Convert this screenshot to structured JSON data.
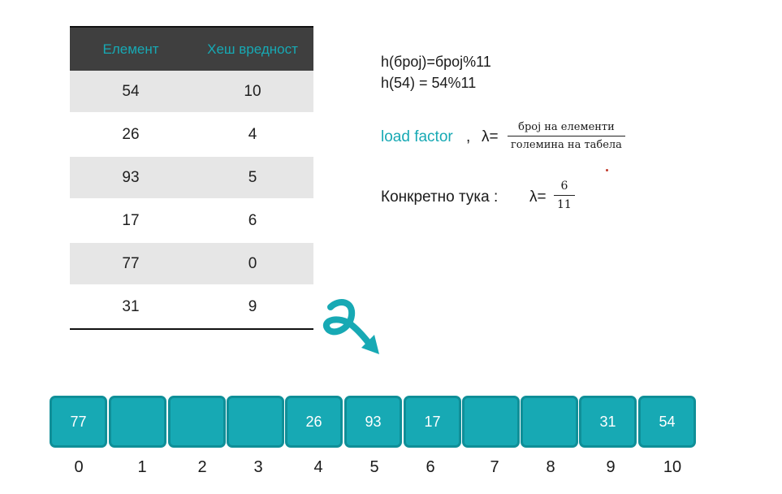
{
  "table": {
    "headers": [
      "Елемент",
      "Хеш вредност"
    ],
    "rows": [
      {
        "element": "54",
        "hash": "10"
      },
      {
        "element": "26",
        "hash": "4"
      },
      {
        "element": "93",
        "hash": "5"
      },
      {
        "element": "17",
        "hash": "6"
      },
      {
        "element": "77",
        "hash": "0"
      },
      {
        "element": "31",
        "hash": "9"
      }
    ]
  },
  "formulas": {
    "hash_function": "h(број)=број%11",
    "example": "h(54) = 54%11",
    "load_factor_label": "load factor",
    "comma": ",",
    "lambda_eq": "λ=",
    "numerator": "број на елементи",
    "denominator": "големина на табела",
    "concrete_label": "Конкретно тука :",
    "concrete_numerator": "6",
    "concrete_denominator": "11"
  },
  "colors": {
    "accent": "#17a9b4",
    "header_bg": "#3f3f3f",
    "row_shade": "#e6e6e6"
  },
  "hash_table": {
    "slots": [
      {
        "index": "0",
        "value": "77"
      },
      {
        "index": "1",
        "value": ""
      },
      {
        "index": "2",
        "value": ""
      },
      {
        "index": "3",
        "value": ""
      },
      {
        "index": "4",
        "value": "26"
      },
      {
        "index": "5",
        "value": "93"
      },
      {
        "index": "6",
        "value": "17"
      },
      {
        "index": "7",
        "value": ""
      },
      {
        "index": "8",
        "value": ""
      },
      {
        "index": "9",
        "value": "31"
      },
      {
        "index": "10",
        "value": "54"
      }
    ]
  },
  "icons": {
    "arrow": "curly-arrow-icon"
  }
}
